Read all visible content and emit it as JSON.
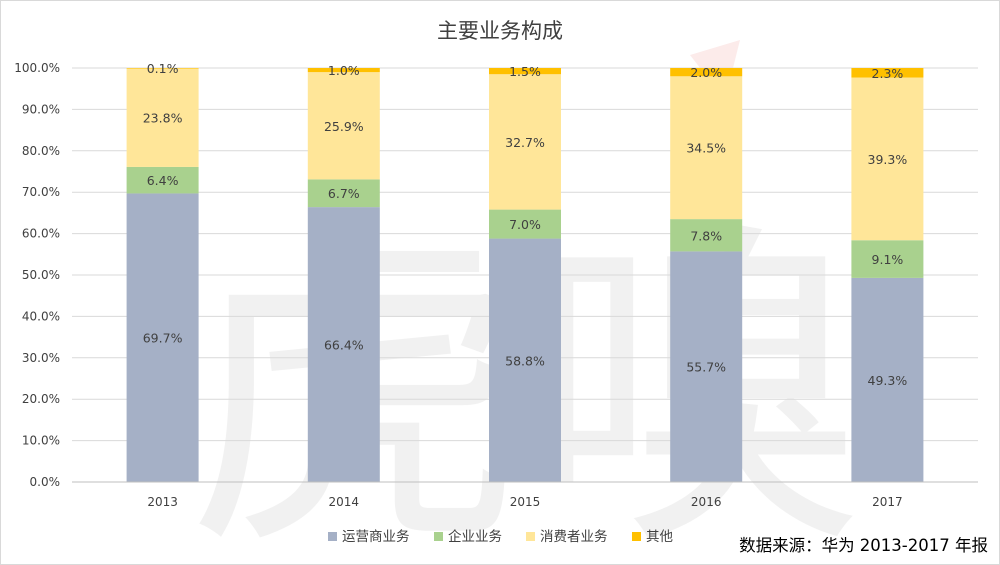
{
  "chart_data": {
    "type": "bar",
    "stacked": true,
    "title": "主要业务构成",
    "categories": [
      "2013",
      "2014",
      "2015",
      "2016",
      "2017"
    ],
    "series": [
      {
        "name": "运营商业务",
        "color": "#a5b0c6",
        "values": [
          69.7,
          66.4,
          58.8,
          55.7,
          49.3
        ]
      },
      {
        "name": "企业业务",
        "color": "#a9d18e",
        "values": [
          6.4,
          6.7,
          7.0,
          7.8,
          9.1
        ]
      },
      {
        "name": "消费者业务",
        "color": "#ffe699",
        "values": [
          23.8,
          25.9,
          32.7,
          34.5,
          39.3
        ]
      },
      {
        "name": "其他",
        "color": "#ffc000",
        "values": [
          0.1,
          1.0,
          1.5,
          2.0,
          2.3
        ]
      }
    ],
    "value_format": "percent_1dp",
    "ylim": [
      0,
      100
    ],
    "yticks": [
      0,
      10,
      20,
      30,
      40,
      50,
      60,
      70,
      80,
      90,
      100
    ],
    "ytick_labels": [
      "0.0%",
      "10.0%",
      "20.0%",
      "30.0%",
      "40.0%",
      "50.0%",
      "60.0%",
      "70.0%",
      "80.0%",
      "90.0%",
      "100.0%"
    ],
    "grid": true,
    "legend_position": "bottom",
    "xlabel": "",
    "ylabel": ""
  },
  "source_note": "数据来源：华为 2013-2017 年报",
  "watermark": "虎嗅"
}
